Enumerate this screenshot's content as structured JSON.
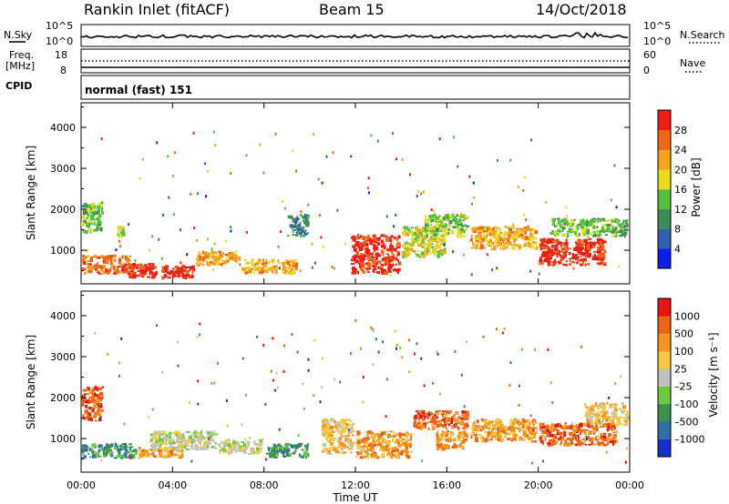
{
  "header": {
    "title": "Rankin Inlet (fitACF)",
    "beam": "Beam 15",
    "date": "14/Oct/2018"
  },
  "strip": {
    "nsky_label": "N.Sky",
    "nsearch_label": "N.Search",
    "freq_label_1": "Freq.",
    "freq_label_2": "[MHz]",
    "nave_label": "Nave",
    "cpid_label": "CPID",
    "cpid_value": "normal (fast) 151",
    "nsky_ticks": [
      "10^5",
      "10^0"
    ],
    "nsearch_ticks": [
      "10^5",
      "10^0"
    ],
    "freq_ticks": [
      "18",
      "8"
    ],
    "nave_ticks": [
      "60",
      "0"
    ]
  },
  "x_axis": {
    "label": "Time UT",
    "ticks": [
      "00:00",
      "04:00",
      "08:00",
      "12:00",
      "16:00",
      "20:00",
      "00:00"
    ]
  },
  "chart_data": [
    {
      "type": "heatmap",
      "name": "power",
      "ylabel": "Slant Range [km]",
      "xlim_hours": [
        0,
        24
      ],
      "ylim": [
        180,
        4600
      ],
      "yticks": [
        "1000",
        "2000",
        "3000",
        "4000"
      ],
      "colorbar_label": "Power [dB]",
      "colorbar_ticks": [
        "4",
        "8",
        "12",
        "16",
        "20",
        "24",
        "28"
      ],
      "colors": [
        "#0a1ee6",
        "#2e5fb0",
        "#3f8c5a",
        "#52c23c",
        "#e6dc1e",
        "#f6a21e",
        "#f06614",
        "#ee1e14"
      ],
      "blocks": [
        {
          "t": [
            0.0,
            2.2
          ],
          "r": [
            400,
            900
          ],
          "c": 6
        },
        {
          "t": [
            0.0,
            1.0
          ],
          "r": [
            1400,
            2200
          ],
          "c": 3
        },
        {
          "t": [
            1.5,
            2.0
          ],
          "r": [
            1300,
            1600
          ],
          "c": 4
        },
        {
          "t": [
            2.0,
            3.5
          ],
          "r": [
            300,
            700
          ],
          "c": 7
        },
        {
          "t": [
            3.5,
            5.0
          ],
          "r": [
            280,
            650
          ],
          "c": 7
        },
        {
          "t": [
            5.0,
            7.0
          ],
          "r": [
            600,
            1000
          ],
          "c": 5
        },
        {
          "t": [
            7.0,
            9.5
          ],
          "r": [
            400,
            800
          ],
          "c": 5
        },
        {
          "t": [
            9.0,
            10.0
          ],
          "r": [
            1300,
            1900
          ],
          "c": 2
        },
        {
          "t": [
            11.8,
            14.0
          ],
          "r": [
            400,
            1400
          ],
          "c": 7
        },
        {
          "t": [
            14.0,
            16.0
          ],
          "r": [
            800,
            1600
          ],
          "c": 4
        },
        {
          "t": [
            15.0,
            17.0
          ],
          "r": [
            1300,
            1900
          ],
          "c": 3
        },
        {
          "t": [
            17.0,
            20.0
          ],
          "r": [
            1000,
            1600
          ],
          "c": 5
        },
        {
          "t": [
            20.0,
            23.0
          ],
          "r": [
            600,
            1300
          ],
          "c": 7
        },
        {
          "t": [
            20.5,
            24.0
          ],
          "r": [
            1300,
            1800
          ],
          "c": 3
        }
      ]
    },
    {
      "type": "heatmap",
      "name": "velocity",
      "ylabel": "Slant Range [km]",
      "xlim_hours": [
        0,
        24
      ],
      "ylim": [
        180,
        4600
      ],
      "yticks": [
        "1000",
        "2000",
        "3000",
        "4000"
      ],
      "colorbar_label": "Velocity [m s⁻¹]",
      "colorbar_ticks": [
        "1000",
        "500",
        "100",
        "25",
        "–25",
        "–100",
        "–500",
        "–1000"
      ],
      "colors": [
        "#1430c8",
        "#2d6fa8",
        "#3c9050",
        "#6cc83c",
        "#c0c0c0",
        "#f6c83c",
        "#f6961e",
        "#ee6414",
        "#e61414"
      ],
      "blocks": [
        {
          "t": [
            0.0,
            1.0
          ],
          "r": [
            1400,
            2300
          ],
          "c": 7
        },
        {
          "t": [
            0.0,
            2.5
          ],
          "r": [
            500,
            900
          ],
          "c": 2
        },
        {
          "t": [
            2.5,
            4.5
          ],
          "r": [
            500,
            800
          ],
          "c": 6
        },
        {
          "t": [
            3.0,
            6.0
          ],
          "r": [
            700,
            1200
          ],
          "c": 4
        },
        {
          "t": [
            6.0,
            8.0
          ],
          "r": [
            600,
            1000
          ],
          "c": 4
        },
        {
          "t": [
            8.0,
            10.0
          ],
          "r": [
            500,
            900
          ],
          "c": 2
        },
        {
          "t": [
            10.5,
            12.0
          ],
          "r": [
            600,
            1500
          ],
          "c": 5
        },
        {
          "t": [
            12.0,
            14.5
          ],
          "r": [
            500,
            1200
          ],
          "c": 6
        },
        {
          "t": [
            14.5,
            17.0
          ],
          "r": [
            1200,
            1700
          ],
          "c": 7
        },
        {
          "t": [
            15.5,
            17.0
          ],
          "r": [
            700,
            1200
          ],
          "c": 6
        },
        {
          "t": [
            17.0,
            20.0
          ],
          "r": [
            900,
            1500
          ],
          "c": 6
        },
        {
          "t": [
            20.0,
            23.5
          ],
          "r": [
            800,
            1400
          ],
          "c": 7
        },
        {
          "t": [
            22.0,
            24.0
          ],
          "r": [
            1300,
            1900
          ],
          "c": 5
        }
      ]
    }
  ]
}
